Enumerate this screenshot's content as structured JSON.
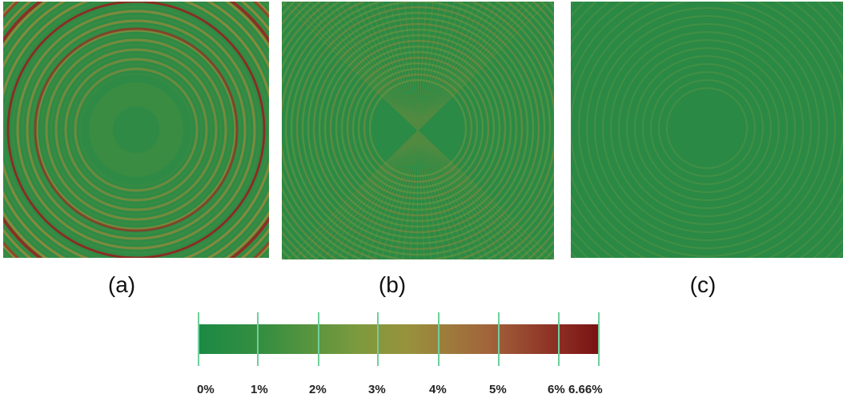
{
  "panels": [
    {
      "label": "(a)"
    },
    {
      "label": "(b)"
    },
    {
      "label": "(c)"
    }
  ],
  "colorbar": {
    "ticks": [
      "0%",
      "1%",
      "2%",
      "3%",
      "4%",
      "5%",
      "6%",
      "6.66%"
    ],
    "colors": [
      "#1b8a44",
      "#7d9a3d",
      "#a2653b",
      "#7a1313"
    ]
  }
}
